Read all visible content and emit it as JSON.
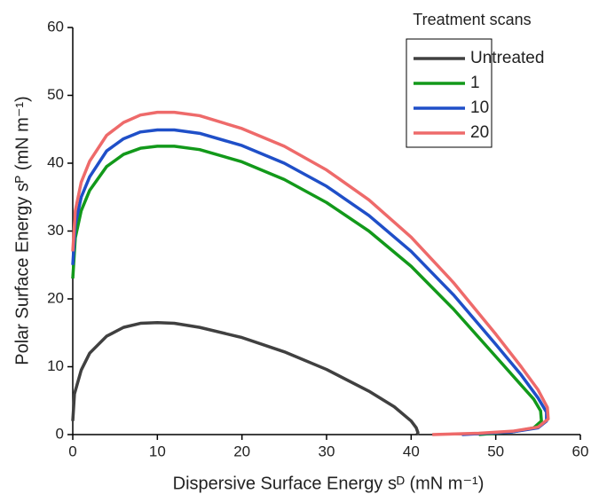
{
  "chart_data": {
    "type": "line",
    "xlabel": "Dispersive Surface Energy sᴰ (mN m⁻¹)",
    "ylabel": "Polar Surface Energy sᴾ (mN m⁻¹)",
    "legend_title": "Treatment scans",
    "legend": "upper right",
    "xlim": [
      0,
      60
    ],
    "xticks": [
      0,
      10,
      20,
      30,
      40,
      50,
      60
    ],
    "ylim": [
      0,
      60
    ],
    "yticks": [
      0,
      10,
      20,
      30,
      40,
      50,
      60
    ],
    "series": [
      {
        "name": "Untreated",
        "color": "#404040",
        "x": [
          0,
          0.2,
          1,
          2,
          4,
          6,
          8,
          10,
          12,
          15,
          20,
          25,
          30,
          35,
          38,
          40,
          40.6,
          40.8,
          40.7
        ],
        "values": [
          2,
          6,
          9.5,
          12,
          14.5,
          15.8,
          16.4,
          16.5,
          16.4,
          15.8,
          14.3,
          12.2,
          9.6,
          6.4,
          4.1,
          2,
          1,
          0.3,
          0
        ]
      },
      {
        "name": "1",
        "color": "#12991a",
        "x": [
          0,
          0.3,
          1,
          2,
          4,
          6,
          8,
          10,
          12,
          15,
          20,
          25,
          30,
          35,
          40,
          45,
          50,
          53,
          54.5,
          55.3,
          55.4,
          54.5,
          52,
          48
        ],
        "values": [
          23,
          29,
          33,
          36,
          39.5,
          41.3,
          42.2,
          42.5,
          42.5,
          42,
          40.2,
          37.6,
          34.2,
          30,
          24.8,
          18.5,
          11.5,
          7.3,
          5.2,
          3.5,
          2,
          1,
          0.4,
          0
        ]
      },
      {
        "name": "10",
        "color": "#1f4fc8",
        "x": [
          0,
          0.3,
          1,
          2,
          4,
          6,
          8,
          10,
          12,
          15,
          20,
          25,
          30,
          35,
          40,
          45,
          50,
          53,
          55,
          56,
          56,
          55,
          52,
          46
        ],
        "values": [
          25,
          31,
          35,
          38,
          41.8,
          43.6,
          44.6,
          44.9,
          44.9,
          44.4,
          42.6,
          40,
          36.6,
          32.3,
          27,
          20.6,
          13.3,
          8.8,
          5.4,
          3.3,
          2,
          1,
          0.4,
          0
        ]
      },
      {
        "name": "20",
        "color": "#ee6a6a",
        "x": [
          0,
          0.3,
          1,
          2,
          4,
          6,
          8,
          10,
          12,
          15,
          20,
          25,
          30,
          35,
          40,
          45,
          50,
          53,
          55,
          56.1,
          56.2,
          55,
          52,
          48,
          42.5
        ],
        "values": [
          27,
          33,
          37.2,
          40.3,
          44.1,
          46,
          47.1,
          47.5,
          47.5,
          47,
          45.1,
          42.5,
          39,
          34.6,
          29.1,
          22.4,
          14.8,
          10,
          6.6,
          4,
          2.3,
          1.1,
          0.5,
          0.2,
          0
        ]
      }
    ]
  }
}
